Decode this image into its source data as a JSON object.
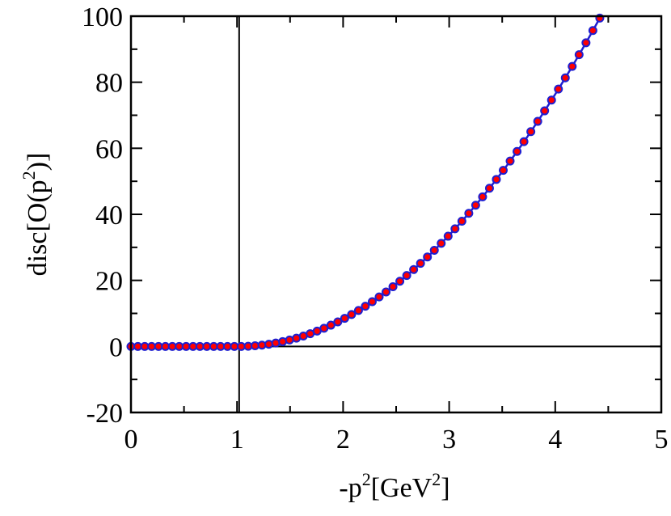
{
  "chart_data": {
    "type": "scatter",
    "xlabel": {
      "prefix": "-p",
      "sup": "2",
      "unit_open": "[GeV",
      "unit_sup": "2",
      "unit_close": "]"
    },
    "ylabel": {
      "prefix": "disc[O(p",
      "sup": "2",
      "suffix": ")]"
    },
    "xlim": [
      0,
      5
    ],
    "ylim": [
      -20,
      100
    ],
    "xticks": [
      "0",
      "1",
      "2",
      "3",
      "4",
      "5"
    ],
    "yticks": [
      "-20",
      "0",
      "20",
      "40",
      "60",
      "80",
      "100"
    ],
    "threshold_x": 1.02,
    "zero_line_y": 0,
    "point_step": 0.065,
    "point_count": 69,
    "curve": {
      "threshold": 1.02,
      "coefficient": 8.6,
      "exponent": 2
    },
    "series": [
      {
        "style": "markers",
        "marker_color": "#ff0000",
        "edge_color": "#1f1fd0"
      },
      {
        "style": "line",
        "color": "#1f1fd0"
      }
    ],
    "grid": false,
    "legend": "none"
  }
}
